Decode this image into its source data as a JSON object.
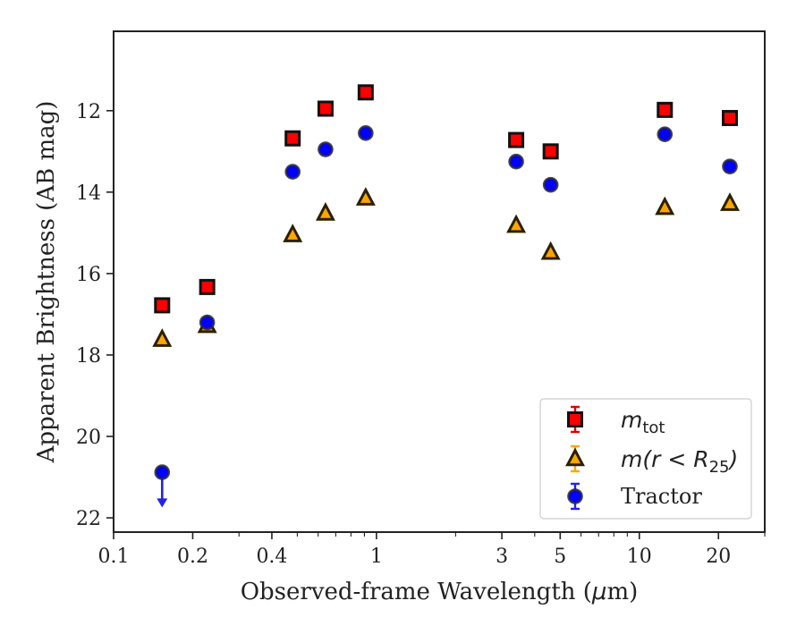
{
  "chart_data": {
    "type": "scatter",
    "xlabel_main": "Observed-frame Wavelength (",
    "xlabel_mu": "μ",
    "xlabel_end": "m)",
    "ylabel": "Apparent Brightness (AB mag)",
    "x_scale": "log",
    "y_inverted": true,
    "xlim": [
      0.1,
      30
    ],
    "ylim": [
      22.35,
      10.05
    ],
    "x_ticks": [
      {
        "value": 0.1,
        "label": "0.1"
      },
      {
        "value": 0.2,
        "label": "0.2"
      },
      {
        "value": 0.4,
        "label": "0.4"
      },
      {
        "value": 1,
        "label": "1"
      },
      {
        "value": 3,
        "label": "3"
      },
      {
        "value": 5,
        "label": "5"
      },
      {
        "value": 10,
        "label": "10"
      },
      {
        "value": 20,
        "label": "20"
      }
    ],
    "y_ticks": [
      {
        "value": 12,
        "label": "12"
      },
      {
        "value": 14,
        "label": "14"
      },
      {
        "value": 16,
        "label": "16"
      },
      {
        "value": 18,
        "label": "18"
      },
      {
        "value": 20,
        "label": "20"
      },
      {
        "value": 22,
        "label": "22"
      }
    ],
    "legend_position": "lower right",
    "grid": false,
    "series": [
      {
        "key": "mtot",
        "marker": "square",
        "color": "#ff0000",
        "edge": "#111111",
        "errorbar_color": "#e00000",
        "label_main": "m",
        "label_sub": "tot",
        "points": [
          {
            "x": 0.153,
            "y": 16.78
          },
          {
            "x": 0.227,
            "y": 16.33
          },
          {
            "x": 0.48,
            "y": 12.68
          },
          {
            "x": 0.64,
            "y": 11.95
          },
          {
            "x": 0.91,
            "y": 11.55
          },
          {
            "x": 3.4,
            "y": 12.72
          },
          {
            "x": 4.6,
            "y": 13.0
          },
          {
            "x": 12.5,
            "y": 11.98
          },
          {
            "x": 22.1,
            "y": 12.18
          }
        ]
      },
      {
        "key": "mr25",
        "marker": "triangle",
        "color": "#ffa500",
        "edge": "#2a2000",
        "errorbar_color": "#ffa500",
        "label_main": "m(r < R",
        "label_sub": "25",
        "label_end": ")",
        "points": [
          {
            "x": 0.153,
            "y": 17.62
          },
          {
            "x": 0.227,
            "y": 17.28
          },
          {
            "x": 0.48,
            "y": 15.05
          },
          {
            "x": 0.64,
            "y": 14.52
          },
          {
            "x": 0.91,
            "y": 14.15
          },
          {
            "x": 3.4,
            "y": 14.82
          },
          {
            "x": 4.6,
            "y": 15.48
          },
          {
            "x": 12.5,
            "y": 14.38
          },
          {
            "x": 22.1,
            "y": 14.28
          }
        ]
      },
      {
        "key": "tractor",
        "marker": "circle",
        "color": "#0000ff",
        "edge": "#2a2a3a",
        "errorbar_color": "#2222ee",
        "label_main": "Tractor",
        "points": [
          {
            "x": 0.153,
            "y": 20.88,
            "upper_limit": true,
            "arrow_to": 21.7
          },
          {
            "x": 0.227,
            "y": 17.2
          },
          {
            "x": 0.48,
            "y": 13.5
          },
          {
            "x": 0.64,
            "y": 12.95
          },
          {
            "x": 0.91,
            "y": 12.55
          },
          {
            "x": 3.4,
            "y": 13.25
          },
          {
            "x": 4.6,
            "y": 13.82
          },
          {
            "x": 12.5,
            "y": 12.58
          },
          {
            "x": 22.1,
            "y": 13.37
          }
        ]
      }
    ]
  }
}
